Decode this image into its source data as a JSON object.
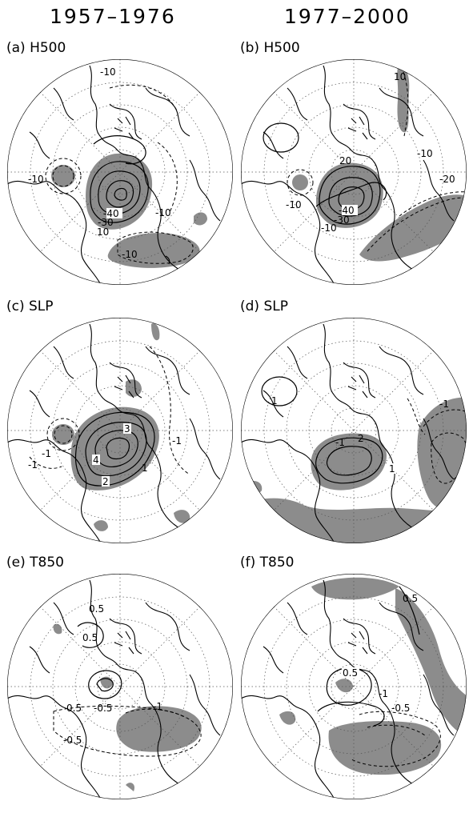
{
  "columns": [
    "1957–1976",
    "1977–2000"
  ],
  "panels": [
    {
      "id": "a",
      "label": "(a) H500",
      "contour_labels": [
        "-10",
        "-10",
        "-40",
        "-30",
        "-10",
        "-10",
        "10"
      ]
    },
    {
      "id": "b",
      "label": "(b) H500",
      "contour_labels": [
        "10",
        "-10",
        "-20",
        "20",
        "-10",
        "-40",
        "-30",
        "-10"
      ]
    },
    {
      "id": "c",
      "label": "(c) SLP",
      "contour_labels": [
        "3",
        "-1",
        "-1",
        "4",
        "2",
        "1",
        "-1"
      ]
    },
    {
      "id": "d",
      "label": "(d) SLP",
      "contour_labels": [
        "1",
        "-1",
        "2",
        "1",
        "-1"
      ]
    },
    {
      "id": "e",
      "label": "(e) T850",
      "contour_labels": [
        "0.5",
        "0.5",
        "0.5",
        "-0.5",
        "-1",
        "-0.5"
      ]
    },
    {
      "id": "f",
      "label": "(f) T850",
      "contour_labels": [
        "0.5",
        "0.5",
        "-1",
        "-0.5"
      ]
    }
  ],
  "colors": {
    "shade": "#8c8c8c",
    "ink": "#000000",
    "grid": "#555555",
    "background": "#ffffff"
  }
}
